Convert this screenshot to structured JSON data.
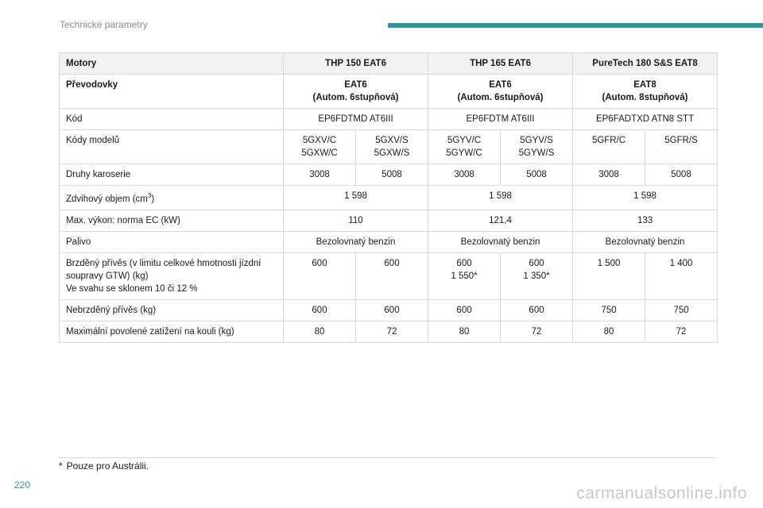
{
  "header": {
    "section_title": "Technické parametry",
    "accent_color": "#2b9a9a"
  },
  "table": {
    "row_motors": {
      "label": "Motory",
      "c1": "THP 150 EAT6",
      "c2": "THP 165 EAT6",
      "c3": "PureTech 180 S&S EAT8"
    },
    "row_gearbox": {
      "label": "Převodovky",
      "c1_line1": "EAT6",
      "c1_line2": "(Autom. 6stupňová)",
      "c2_line1": "EAT6",
      "c2_line2": "(Autom. 6stupňová)",
      "c3_line1": "EAT8",
      "c3_line2": "(Autom. 8stupňová)"
    },
    "row_code": {
      "label": "Kód",
      "c1": "EP6FDTMD AT6III",
      "c2": "EP6FDTM AT6III",
      "c3": "EP6FADTXD ATN8 STT"
    },
    "row_models": {
      "label": "Kódy modelů",
      "m1_l1": "5GXV/C",
      "m1_l2": "5GXW/C",
      "m2_l1": "5GXV/S",
      "m2_l2": "5GXW/S",
      "m3_l1": "5GYV/C",
      "m3_l2": "5GYW/C",
      "m4_l1": "5GYV/S",
      "m4_l2": "5GYW/S",
      "m5": "5GFR/C",
      "m6": "5GFR/S"
    },
    "row_body": {
      "label": "Druhy karoserie",
      "v1": "3008",
      "v2": "5008",
      "v3": "3008",
      "v4": "5008",
      "v5": "3008",
      "v6": "5008"
    },
    "row_displacement": {
      "label_prefix": "Zdvihový objem (cm",
      "label_sup": "3",
      "label_suffix": ")",
      "c1": "1 598",
      "c2": "1 598",
      "c3": "1 598"
    },
    "row_power": {
      "label": "Max. výkon: norma EC (kW)",
      "c1": "110",
      "c2": "121,4",
      "c3": "133"
    },
    "row_fuel": {
      "label": "Palivo",
      "c1": "Bezolovnatý benzin",
      "c2": "Bezolovnatý benzin",
      "c3": "Bezolovnatý benzin"
    },
    "row_braked": {
      "label_line1": "Brzděný přívěs (v limitu celkové hmotnosti jízdní",
      "label_line2": "soupravy GTW) (kg)",
      "label_line3": "Ve svahu se sklonem 10 či 12 %",
      "v1": "600",
      "v2": "600",
      "v3_l1": "600",
      "v3_l2": "1 550*",
      "v4_l1": "600",
      "v4_l2": "1 350*",
      "v5": "1 500",
      "v6": "1 400"
    },
    "row_unbraked": {
      "label": "Nebrzděný přívěs (kg)",
      "v1": "600",
      "v2": "600",
      "v3": "600",
      "v4": "600",
      "v5": "750",
      "v6": "750"
    },
    "row_noseweight": {
      "label": "Maximální povolené zatížení na kouli (kg)",
      "v1": "80",
      "v2": "72",
      "v3": "80",
      "v4": "72",
      "v5": "80",
      "v6": "72"
    }
  },
  "footnote": {
    "mark": "*",
    "text": "Pouze pro Austrálii."
  },
  "page_number": "220",
  "watermark": "carmanualsonline.info"
}
